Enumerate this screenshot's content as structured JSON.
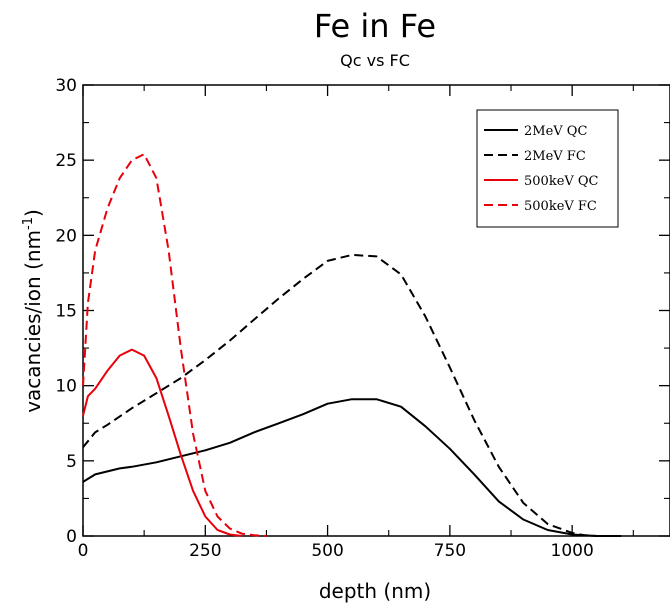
{
  "chart_data": {
    "type": "line",
    "title": "Fe in Fe",
    "subtitle": "Qc vs FC",
    "xlabel": "depth (nm)",
    "ylabel_main": "vacancies/ion (nm",
    "ylabel_sup": "-1",
    "ylabel_close": ")",
    "xlim": [
      0,
      1200
    ],
    "ylim": [
      0,
      30
    ],
    "xticks": [
      0,
      250,
      500,
      750,
      1000
    ],
    "yticks": [
      0,
      5,
      10,
      15,
      20,
      25,
      30
    ],
    "grid": false,
    "legend_position": "top-right",
    "series": [
      {
        "name": "2MeV QC",
        "color": "#000000",
        "dash": "solid",
        "x": [
          0,
          25,
          50,
          75,
          100,
          150,
          200,
          250,
          300,
          350,
          400,
          450,
          500,
          550,
          600,
          650,
          700,
          750,
          800,
          850,
          900,
          950,
          1000,
          1050,
          1100
        ],
        "y": [
          3.6,
          4.1,
          4.3,
          4.5,
          4.6,
          4.9,
          5.3,
          5.7,
          6.2,
          6.9,
          7.5,
          8.1,
          8.8,
          9.1,
          9.1,
          8.6,
          7.3,
          5.8,
          4.1,
          2.3,
          1.1,
          0.4,
          0.1,
          0.0,
          0.0
        ]
      },
      {
        "name": "2MeV FC",
        "color": "#000000",
        "dash": "dashed",
        "x": [
          0,
          25,
          50,
          100,
          150,
          200,
          250,
          300,
          350,
          400,
          450,
          500,
          550,
          600,
          650,
          700,
          750,
          800,
          850,
          900,
          950,
          1000,
          1025,
          1050
        ],
        "y": [
          5.9,
          6.9,
          7.4,
          8.5,
          9.5,
          10.5,
          11.7,
          13.0,
          14.4,
          15.8,
          17.1,
          18.3,
          18.7,
          18.6,
          17.4,
          14.6,
          11.2,
          7.7,
          4.6,
          2.2,
          0.8,
          0.2,
          0.05,
          0.0
        ]
      },
      {
        "name": "500keV QC",
        "color": "#e8000b",
        "dash": "solid",
        "x": [
          0,
          10,
          25,
          50,
          75,
          100,
          125,
          150,
          175,
          200,
          225,
          250,
          275,
          300,
          325
        ],
        "y": [
          8.0,
          9.3,
          9.8,
          11.0,
          12.0,
          12.4,
          12.0,
          10.5,
          8.0,
          5.4,
          3.0,
          1.3,
          0.4,
          0.1,
          0.0
        ]
      },
      {
        "name": "500keV FC",
        "color": "#e8000b",
        "dash": "dashed",
        "x": [
          0,
          10,
          25,
          50,
          75,
          100,
          125,
          150,
          175,
          200,
          225,
          250,
          275,
          300,
          325,
          350,
          375
        ],
        "y": [
          10.0,
          15.5,
          19.0,
          21.8,
          23.8,
          25.0,
          25.4,
          23.8,
          19.0,
          12.5,
          6.8,
          3.0,
          1.3,
          0.5,
          0.15,
          0.05,
          0.0
        ]
      }
    ]
  }
}
